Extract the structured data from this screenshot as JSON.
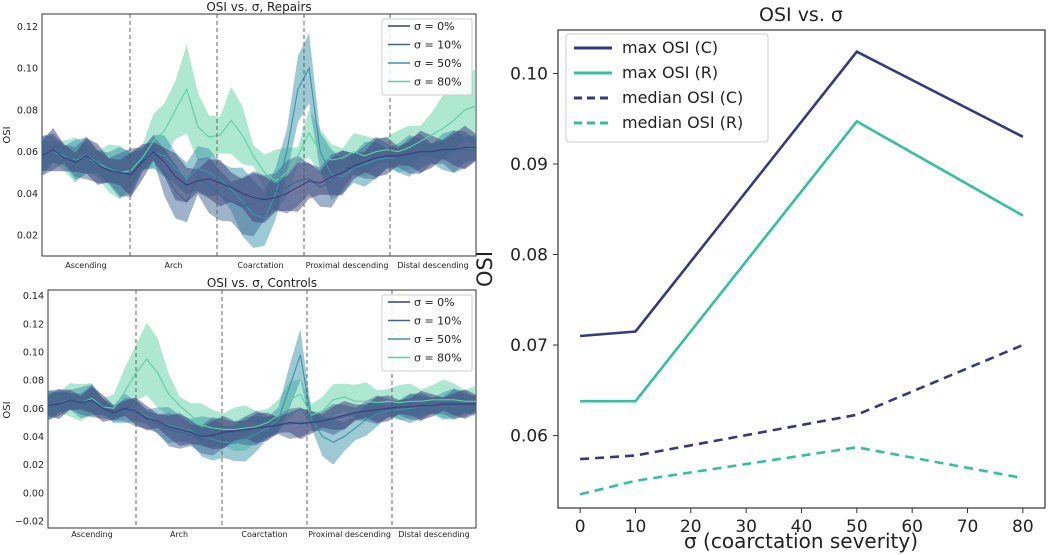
{
  "chart_data": [
    {
      "type": "line",
      "title": "OSI vs. σ, Repairs",
      "ylabel": "OSI",
      "ylim": [
        0.01,
        0.126
      ],
      "yticks": [
        "0.02",
        "0.04",
        "0.06",
        "0.08",
        "0.10",
        "0.12"
      ],
      "regions": [
        "Ascending",
        "Arch",
        "Coarctation",
        "Proximal descending",
        "Distal descending"
      ],
      "legend": [
        "σ = 0%",
        "σ = 10%",
        "σ = 50%",
        "σ = 80%"
      ],
      "series_colors": [
        "#3b3d78",
        "#3e6593",
        "#3a93a8",
        "#5ed0a6"
      ],
      "series": [
        {
          "name": "σ = 0%",
          "values": [
            0.058,
            0.061,
            0.057,
            0.055,
            0.058,
            0.054,
            0.051,
            0.05,
            0.049,
            0.055,
            0.06,
            0.055,
            0.048,
            0.044,
            0.046,
            0.047,
            0.045,
            0.043,
            0.04,
            0.038,
            0.037,
            0.038,
            0.04,
            0.043,
            0.046,
            0.045,
            0.048,
            0.05,
            0.053,
            0.055,
            0.057,
            0.058,
            0.058,
            0.059,
            0.06,
            0.06,
            0.061,
            0.061,
            0.062,
            0.062
          ]
        },
        {
          "name": "σ = 10%",
          "values": [
            0.058,
            0.06,
            0.059,
            0.055,
            0.057,
            0.053,
            0.051,
            0.049,
            0.05,
            0.056,
            0.062,
            0.05,
            0.041,
            0.036,
            0.048,
            0.044,
            0.039,
            0.036,
            0.034,
            0.035,
            0.038,
            0.041,
            0.043,
            0.046,
            0.047,
            0.043,
            0.046,
            0.051,
            0.054,
            0.055,
            0.057,
            0.058,
            0.057,
            0.058,
            0.059,
            0.059,
            0.06,
            0.06,
            0.061,
            0.061
          ]
        },
        {
          "name": "σ = 50%",
          "values": [
            0.058,
            0.061,
            0.058,
            0.056,
            0.058,
            0.055,
            0.052,
            0.05,
            0.05,
            0.056,
            0.06,
            0.058,
            0.052,
            0.047,
            0.052,
            0.05,
            0.047,
            0.042,
            0.036,
            0.03,
            0.028,
            0.04,
            0.06,
            0.09,
            0.1,
            0.06,
            0.049,
            0.048,
            0.052,
            0.054,
            0.056,
            0.057,
            0.057,
            0.058,
            0.059,
            0.059,
            0.06,
            0.06,
            0.061,
            0.062
          ]
        },
        {
          "name": "σ = 80%",
          "values": [
            0.058,
            0.06,
            0.058,
            0.056,
            0.057,
            0.054,
            0.052,
            0.05,
            0.051,
            0.057,
            0.065,
            0.07,
            0.08,
            0.09,
            0.072,
            0.067,
            0.068,
            0.075,
            0.068,
            0.058,
            0.05,
            0.046,
            0.05,
            0.058,
            0.069,
            0.06,
            0.056,
            0.057,
            0.06,
            0.058,
            0.06,
            0.061,
            0.06,
            0.062,
            0.065,
            0.068,
            0.071,
            0.075,
            0.08,
            0.082
          ]
        }
      ]
    },
    {
      "type": "line",
      "title": "OSI vs. σ, Controls",
      "ylabel": "OSI",
      "ylim": [
        -0.025,
        0.144
      ],
      "yticks": [
        "−0.02",
        "0.00",
        "0.02",
        "0.04",
        "0.06",
        "0.08",
        "0.10",
        "0.12",
        "0.14"
      ],
      "regions": [
        "Ascending",
        "Arch",
        "Coarctation",
        "Proximal descending",
        "Distal descending"
      ],
      "legend": [
        "σ = 0%",
        "σ = 10%",
        "σ = 50%",
        "σ = 80%"
      ],
      "series_colors": [
        "#3b3d78",
        "#3e6593",
        "#3a93a8",
        "#5ed0a6"
      ],
      "series": [
        {
          "name": "σ = 0%",
          "values": [
            0.062,
            0.063,
            0.066,
            0.064,
            0.066,
            0.06,
            0.057,
            0.06,
            0.058,
            0.053,
            0.051,
            0.047,
            0.045,
            0.043,
            0.04,
            0.041,
            0.043,
            0.044,
            0.045,
            0.046,
            0.047,
            0.048,
            0.05,
            0.049,
            0.05,
            0.051,
            0.053,
            0.055,
            0.057,
            0.058,
            0.059,
            0.06,
            0.061,
            0.061,
            0.062,
            0.062,
            0.063,
            0.063,
            0.063,
            0.063
          ]
        },
        {
          "name": "σ = 10%",
          "values": [
            0.062,
            0.064,
            0.065,
            0.063,
            0.065,
            0.06,
            0.056,
            0.059,
            0.057,
            0.052,
            0.049,
            0.045,
            0.043,
            0.041,
            0.038,
            0.04,
            0.042,
            0.043,
            0.044,
            0.046,
            0.047,
            0.048,
            0.049,
            0.05,
            0.05,
            0.051,
            0.052,
            0.054,
            0.056,
            0.058,
            0.059,
            0.06,
            0.06,
            0.061,
            0.061,
            0.062,
            0.062,
            0.063,
            0.063,
            0.063
          ]
        },
        {
          "name": "σ = 50%",
          "values": [
            0.062,
            0.064,
            0.066,
            0.064,
            0.066,
            0.061,
            0.056,
            0.06,
            0.058,
            0.054,
            0.051,
            0.048,
            0.046,
            0.044,
            0.04,
            0.038,
            0.036,
            0.035,
            0.038,
            0.042,
            0.046,
            0.052,
            0.075,
            0.098,
            0.052,
            0.04,
            0.036,
            0.04,
            0.046,
            0.052,
            0.056,
            0.058,
            0.059,
            0.06,
            0.061,
            0.062,
            0.062,
            0.063,
            0.063,
            0.063
          ]
        },
        {
          "name": "σ = 80%",
          "values": [
            0.062,
            0.064,
            0.066,
            0.064,
            0.067,
            0.061,
            0.06,
            0.072,
            0.085,
            0.095,
            0.085,
            0.07,
            0.062,
            0.055,
            0.048,
            0.046,
            0.045,
            0.045,
            0.046,
            0.047,
            0.05,
            0.055,
            0.066,
            0.07,
            0.055,
            0.058,
            0.066,
            0.068,
            0.065,
            0.065,
            0.064,
            0.065,
            0.064,
            0.065,
            0.065,
            0.066,
            0.066,
            0.066,
            0.065,
            0.065
          ]
        }
      ]
    },
    {
      "type": "line",
      "title": "OSI vs. σ",
      "xlabel": "σ (coarctation severity)",
      "ylabel": "OSI",
      "xlim": [
        -4,
        84
      ],
      "ylim": [
        0.052,
        0.1048
      ],
      "xticks": [
        0,
        10,
        20,
        30,
        40,
        50,
        60,
        70,
        80
      ],
      "yticks": [
        0.06,
        0.07,
        0.08,
        0.09,
        0.1
      ],
      "ytick_labels": [
        "0.06",
        "0.07",
        "0.08",
        "0.09",
        "0.10"
      ],
      "x": [
        0,
        10,
        50,
        80
      ],
      "series": [
        {
          "name": "max OSI (C)",
          "values": [
            0.071,
            0.0715,
            0.1024,
            0.093
          ],
          "color": "#363a7a",
          "dash": "solid"
        },
        {
          "name": "max OSI (R)",
          "values": [
            0.0638,
            0.0638,
            0.0947,
            0.0843
          ],
          "color": "#34c0a0",
          "dash": "solid"
        },
        {
          "name": "median OSI (C)",
          "values": [
            0.0574,
            0.0578,
            0.0623,
            0.07
          ],
          "color": "#363a7a",
          "dash": "dashed"
        },
        {
          "name": "median OSI (R)",
          "values": [
            0.0535,
            0.055,
            0.0587,
            0.0553
          ],
          "color": "#34c0a0",
          "dash": "dashed"
        }
      ]
    }
  ]
}
